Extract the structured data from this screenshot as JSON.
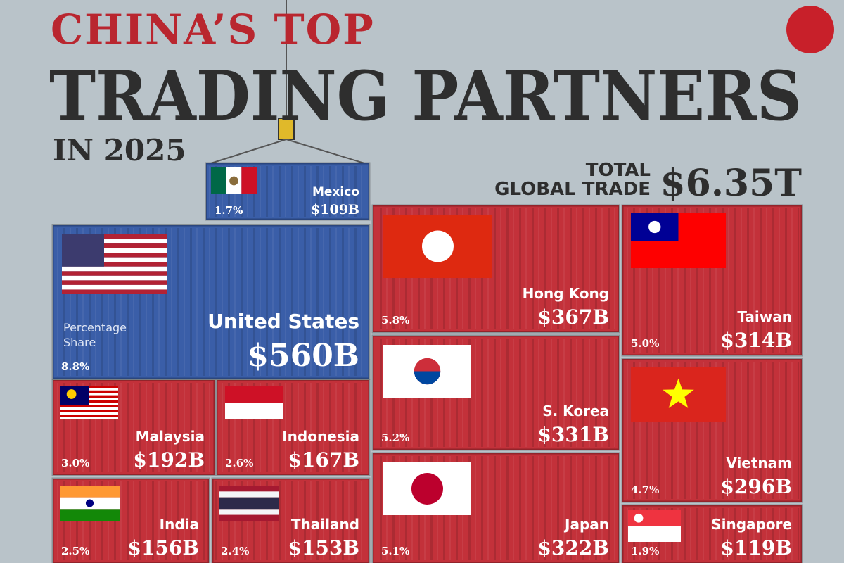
{
  "chart_data": {
    "type": "treemap",
    "title_lines": [
      "CHINA’S TOP",
      "TRADING PARTNERS",
      "IN 2025"
    ],
    "total_label_lines": [
      "TOTAL",
      "GLOBAL TRADE"
    ],
    "total_value": 6350,
    "total_value_label": "$6.35T",
    "share_caption_lines": [
      "Percentage",
      "Share"
    ],
    "categories": [
      "United States",
      "Mexico",
      "Hong Kong",
      "S. Korea",
      "Japan",
      "Taiwan",
      "Vietnam",
      "Singapore",
      "Malaysia",
      "Indonesia",
      "India",
      "Thailand"
    ],
    "values": [
      560,
      109,
      367,
      331,
      322,
      314,
      296,
      119,
      192,
      167,
      156,
      153
    ],
    "value_labels": [
      "$560B",
      "$109B",
      "$367B",
      "$331B",
      "$322B",
      "$314B",
      "$296B",
      "$119B",
      "$192B",
      "$167B",
      "$156B",
      "$153B"
    ],
    "shares": [
      8.8,
      1.7,
      5.8,
      5.2,
      5.1,
      5.0,
      4.7,
      1.9,
      3.0,
      2.6,
      2.5,
      2.4
    ],
    "share_labels": [
      "8.8%",
      "1.7%",
      "5.8%",
      "5.2%",
      "5.1%",
      "5.0%",
      "4.7%",
      "1.9%",
      "3.0%",
      "2.6%",
      "2.5%",
      "2.4%"
    ],
    "colors": [
      "#3a5ea8",
      "#3a5ea8",
      "#c3313a",
      "#c3313a",
      "#c3313a",
      "#c3313a",
      "#c3313a",
      "#c3313a",
      "#c3313a",
      "#c3313a",
      "#c3313a",
      "#c3313a"
    ]
  }
}
